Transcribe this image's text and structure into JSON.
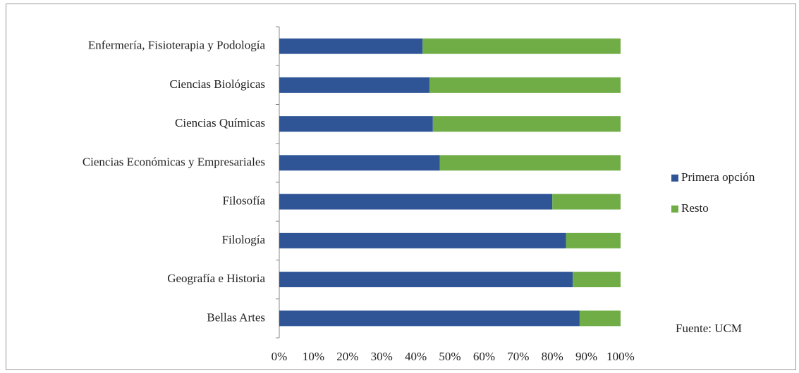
{
  "chart_data": {
    "type": "stacked-barh",
    "categories": [
      "Enfermería, Fisioterapia y Podología",
      "Ciencias Biológicas",
      "Ciencias Químicas",
      "Ciencias Económicas y Empresariales",
      "Filosofía",
      "Filología",
      "Geografía e Historia",
      "Bellas Artes"
    ],
    "series": [
      {
        "name": "Primera opción",
        "color": "#2f5597",
        "values": [
          42,
          44,
          45,
          47,
          80,
          84,
          86,
          88
        ]
      },
      {
        "name": "Resto",
        "color": "#70ad47",
        "values": [
          58,
          56,
          55,
          53,
          20,
          16,
          14,
          12
        ]
      }
    ],
    "xlim": [
      0,
      100
    ],
    "xticks": [
      {
        "value": 0,
        "label": "0%"
      },
      {
        "value": 10,
        "label": "10%"
      },
      {
        "value": 20,
        "label": "20%"
      },
      {
        "value": 30,
        "label": "30%"
      },
      {
        "value": 40,
        "label": "40%"
      },
      {
        "value": 50,
        "label": "50%"
      },
      {
        "value": 60,
        "label": "60%"
      },
      {
        "value": 70,
        "label": "70%"
      },
      {
        "value": 80,
        "label": "80%"
      },
      {
        "value": 90,
        "label": "90%"
      },
      {
        "value": 100,
        "label": "100%"
      }
    ],
    "legend": "right",
    "annotation": "Fuente: UCM"
  }
}
